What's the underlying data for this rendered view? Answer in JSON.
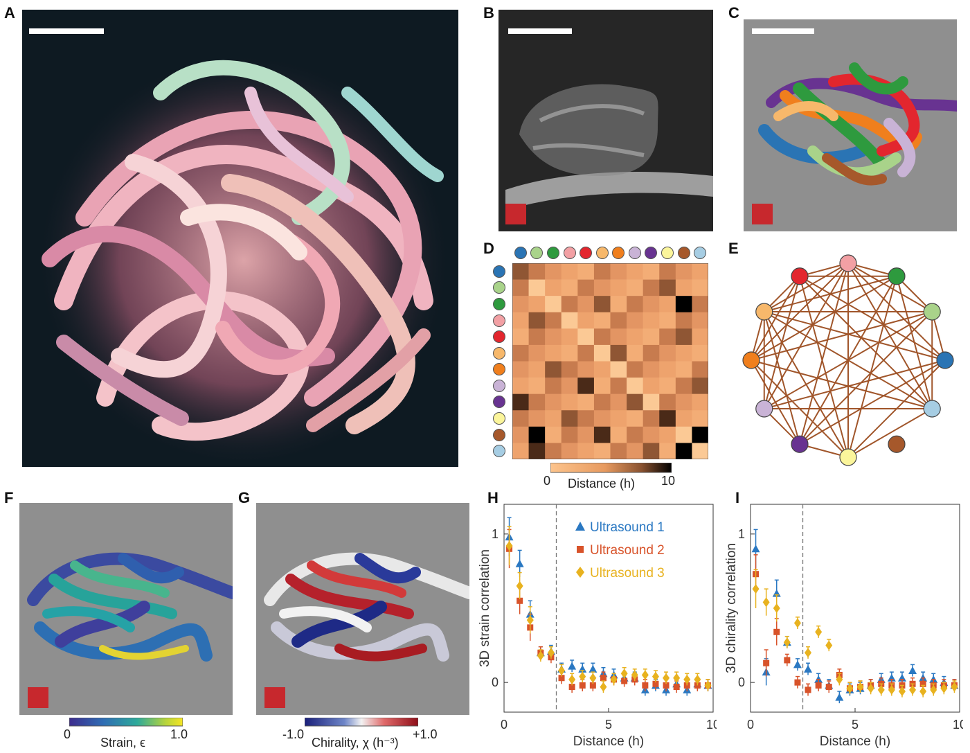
{
  "panels": {
    "A": "A",
    "B": "B",
    "C": "C",
    "D": "D",
    "E": "E",
    "F": "F",
    "G": "G",
    "H": "H",
    "I": "I"
  },
  "worm_colors": [
    "#2a74b4",
    "#a9d38a",
    "#2e9a3e",
    "#f2a0a4",
    "#e3262e",
    "#f7b86b",
    "#f07f1d",
    "#c9b3d6",
    "#683391",
    "#fbf59b",
    "#a6582b",
    "#a6cde3"
  ],
  "network_order": [
    "#f2a0a4",
    "#2e9a3e",
    "#a9d38a",
    "#2a74b4",
    "#a6cde3",
    "#a6582b",
    "#fbf59b",
    "#683391",
    "#c9b3d6",
    "#f07f1d",
    "#f7b86b",
    "#e3262e"
  ],
  "colorbar_D": {
    "min": "0",
    "max": "10",
    "label": "Distance (h)"
  },
  "colorbar_F": {
    "min": "0",
    "max": "1.0",
    "label": "Strain, ϵ"
  },
  "colorbar_G": {
    "min": "-1.0",
    "max": "+1.0",
    "label": "Chirality, χ (h⁻³)"
  },
  "chart_data": [
    {
      "type": "scatter",
      "panel": "H",
      "xlabel": "Distance (h)",
      "ylabel": "3D strain correlation",
      "xlim": [
        0,
        10
      ],
      "ylim": [
        -0.2,
        1.2
      ],
      "xticks": [
        "0",
        "5",
        "10"
      ],
      "yticks": [
        "0",
        "1"
      ],
      "vline": 2.5,
      "series": [
        {
          "name": "Ultrasound 1",
          "color": "#2a78c2",
          "marker": "triangle",
          "x": [
            0.25,
            0.75,
            1.25,
            1.75,
            2.25,
            2.75,
            3.25,
            3.75,
            4.25,
            4.75,
            5.25,
            5.75,
            6.25,
            6.75,
            7.25,
            7.75,
            8.25,
            8.75,
            9.25,
            9.75
          ],
          "y": [
            0.98,
            0.8,
            0.46,
            0.2,
            0.21,
            0.09,
            0.11,
            0.09,
            0.09,
            0.06,
            0.05,
            0.03,
            0.03,
            -0.05,
            -0.02,
            -0.05,
            -0.01,
            -0.05,
            -0.01,
            -0.02
          ]
        },
        {
          "name": "Ultrasound 2",
          "color": "#d8532a",
          "marker": "square",
          "x": [
            0.25,
            0.75,
            1.25,
            1.75,
            2.25,
            2.75,
            3.25,
            3.75,
            4.25,
            4.75,
            5.25,
            5.75,
            6.25,
            6.75,
            7.25,
            7.75,
            8.25,
            8.75,
            9.25,
            9.75
          ],
          "y": [
            0.9,
            0.55,
            0.37,
            0.2,
            0.17,
            0.03,
            -0.03,
            -0.02,
            -0.02,
            0.03,
            0.02,
            0.01,
            0.02,
            -0.02,
            -0.01,
            -0.02,
            -0.03,
            -0.02,
            -0.02,
            -0.02
          ]
        },
        {
          "name": "Ultrasound 3",
          "color": "#e8b21f",
          "marker": "diamond",
          "x": [
            0.25,
            0.75,
            1.25,
            1.75,
            2.25,
            2.75,
            3.25,
            3.75,
            4.25,
            4.75,
            5.25,
            5.75,
            6.25,
            6.75,
            7.25,
            7.75,
            8.25,
            8.75,
            9.25,
            9.75
          ],
          "y": [
            0.92,
            0.65,
            0.42,
            0.18,
            0.2,
            0.08,
            0.02,
            0.04,
            0.03,
            -0.03,
            0.02,
            0.06,
            0.05,
            0.05,
            0.04,
            0.03,
            0.03,
            0.02,
            0.02,
            -0.02
          ]
        }
      ]
    },
    {
      "type": "scatter",
      "panel": "I",
      "xlabel": "Distance (h)",
      "ylabel": "3D chirality correlation",
      "xlim": [
        0,
        10
      ],
      "ylim": [
        -0.2,
        1.2
      ],
      "xticks": [
        "0",
        "5",
        "10"
      ],
      "yticks": [
        "0",
        "1"
      ],
      "vline": 2.5,
      "series": [
        {
          "name": "Ultrasound 1",
          "color": "#2a78c2",
          "marker": "triangle",
          "x": [
            0.25,
            0.75,
            1.25,
            1.75,
            2.25,
            2.75,
            3.25,
            3.75,
            4.25,
            4.75,
            5.25,
            5.75,
            6.25,
            6.75,
            7.25,
            7.75,
            8.25,
            8.75,
            9.25,
            9.75
          ],
          "y": [
            0.9,
            0.07,
            0.6,
            0.27,
            0.12,
            0.09,
            0.02,
            -0.02,
            -0.1,
            -0.05,
            -0.04,
            -0.02,
            0.02,
            0.03,
            0.03,
            0.08,
            0.03,
            0.02,
            0.0,
            -0.02
          ]
        },
        {
          "name": "Ultrasound 2",
          "color": "#d8532a",
          "marker": "square",
          "x": [
            0.25,
            0.75,
            1.25,
            1.75,
            2.25,
            2.75,
            3.25,
            3.75,
            4.25,
            4.75,
            5.25,
            5.75,
            6.25,
            6.75,
            7.25,
            7.75,
            8.25,
            8.75,
            9.25,
            9.75
          ],
          "y": [
            0.73,
            0.13,
            0.34,
            0.15,
            0.0,
            -0.05,
            -0.02,
            -0.03,
            0.05,
            -0.04,
            -0.03,
            -0.02,
            -0.01,
            -0.02,
            -0.02,
            -0.01,
            -0.01,
            -0.02,
            -0.02,
            -0.02
          ]
        },
        {
          "name": "Ultrasound 3",
          "color": "#e8b21f",
          "marker": "diamond",
          "x": [
            0.25,
            0.75,
            1.25,
            1.75,
            2.25,
            2.75,
            3.25,
            3.75,
            4.25,
            4.75,
            5.25,
            5.75,
            6.25,
            6.75,
            7.25,
            7.75,
            8.25,
            8.75,
            9.25,
            9.75
          ],
          "y": [
            0.63,
            0.54,
            0.5,
            0.27,
            0.4,
            0.2,
            0.34,
            0.25,
            0.02,
            -0.04,
            -0.03,
            -0.04,
            -0.05,
            -0.05,
            -0.06,
            -0.05,
            -0.06,
            -0.05,
            -0.04,
            -0.03
          ]
        }
      ]
    }
  ]
}
